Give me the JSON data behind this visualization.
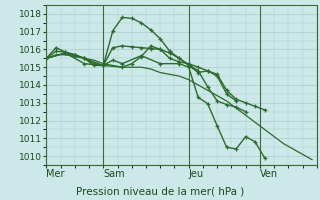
{
  "background_color": "#cce8e8",
  "grid_color": "#aacccc",
  "line_color": "#2d6a2d",
  "xlabel": "Pression niveau de la mer( hPa )",
  "ylim": [
    1009.5,
    1018.5
  ],
  "yticks": [
    1010,
    1011,
    1012,
    1013,
    1014,
    1015,
    1016,
    1017,
    1018
  ],
  "day_labels": [
    "Mer",
    "Sam",
    "Jeu",
    "Ven"
  ],
  "day_positions": [
    0,
    24,
    60,
    90
  ],
  "xlim": [
    0,
    114
  ],
  "series": [
    {
      "x": [
        0,
        4,
        8,
        12,
        16,
        20,
        24,
        28,
        32,
        36,
        40,
        44,
        48,
        52,
        56,
        60,
        64,
        68,
        72,
        76,
        80,
        84,
        88,
        92,
        96,
        100,
        104,
        108,
        112
      ],
      "y": [
        1015.5,
        1015.7,
        1015.7,
        1015.6,
        1015.5,
        1015.4,
        1015.2,
        1015.1,
        1015.0,
        1015.0,
        1015.0,
        1014.9,
        1014.7,
        1014.6,
        1014.5,
        1014.3,
        1014.0,
        1013.7,
        1013.4,
        1013.1,
        1012.7,
        1012.3,
        1011.9,
        1011.5,
        1011.1,
        1010.7,
        1010.4,
        1010.1,
        1009.8
      ],
      "marker": null,
      "lw": 0.9
    },
    {
      "x": [
        0,
        8,
        16,
        24,
        32,
        36,
        40,
        44,
        48,
        52,
        56,
        60,
        64,
        68,
        72,
        76,
        80,
        84,
        88,
        92
      ],
      "y": [
        1015.5,
        1015.8,
        1015.5,
        1015.1,
        1015.0,
        1015.2,
        1015.6,
        1016.2,
        1016.0,
        1015.5,
        1015.3,
        1015.2,
        1015.0,
        1014.8,
        1014.6,
        1013.7,
        1013.2,
        1013.0,
        1012.8,
        1012.6
      ],
      "marker": "+",
      "lw": 1.0
    },
    {
      "x": [
        0,
        4,
        8,
        12,
        16,
        20,
        24,
        28,
        32,
        36,
        40,
        44,
        48,
        52,
        56,
        60,
        64,
        68,
        72,
        76,
        80
      ],
      "y": [
        1015.5,
        1015.9,
        1015.85,
        1015.7,
        1015.5,
        1015.2,
        1015.1,
        1016.1,
        1016.2,
        1016.15,
        1016.1,
        1016.05,
        1016.0,
        1015.8,
        1015.5,
        1015.1,
        1014.7,
        1014.8,
        1014.5,
        1013.5,
        1013.1
      ],
      "marker": "+",
      "lw": 1.0
    },
    {
      "x": [
        0,
        4,
        8,
        12,
        16,
        20,
        24,
        28,
        32,
        36,
        40,
        44,
        48,
        52,
        56,
        60,
        64,
        68,
        72,
        76,
        80,
        84
      ],
      "y": [
        1015.5,
        1016.1,
        1015.85,
        1015.7,
        1015.5,
        1015.1,
        1015.1,
        1017.05,
        1017.8,
        1017.75,
        1017.5,
        1017.1,
        1016.6,
        1015.9,
        1015.5,
        1015.15,
        1014.8,
        1013.9,
        1013.1,
        1012.9,
        1012.75,
        1012.5
      ],
      "marker": "+",
      "lw": 1.0
    },
    {
      "x": [
        0,
        8,
        16,
        24,
        28,
        32,
        40,
        48,
        56,
        60,
        64,
        68,
        72,
        76,
        80,
        84,
        88,
        92
      ],
      "y": [
        1015.5,
        1015.8,
        1015.2,
        1015.1,
        1015.4,
        1015.2,
        1015.65,
        1015.2,
        1015.2,
        1015.0,
        1013.3,
        1012.95,
        1011.7,
        1010.5,
        1010.4,
        1011.1,
        1010.8,
        1009.9
      ],
      "marker": "+",
      "lw": 1.0
    }
  ]
}
